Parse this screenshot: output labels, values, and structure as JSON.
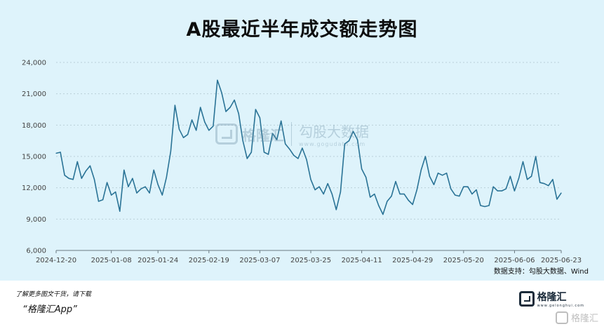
{
  "title": "A股最近半年成交额走势图",
  "source": "数据支持：勾股大数据、Wind",
  "watermark": {
    "brand": "格隆汇",
    "site": "勾股大数据",
    "url": "www.gogudata.com"
  },
  "footer": {
    "cta": "了解更多图文干货，请下载",
    "app": "“格隆汇App”",
    "brand": "格隆汇",
    "url": "www.gelonghui.com",
    "corner": "格隆汇"
  },
  "chart_data": {
    "type": "line",
    "title": "A股最近半年成交额走势图",
    "xlabel": "",
    "ylabel": "",
    "ylim": [
      6000,
      24000
    ],
    "yticks": [
      "6,000",
      "9,000",
      "12,000",
      "15,000",
      "18,000",
      "21,000",
      "24,000"
    ],
    "ytick_values": [
      6000,
      9000,
      12000,
      15000,
      18000,
      21000,
      24000
    ],
    "xtick_labels": [
      "2024-12-20",
      "2025-01-08",
      "2025-01-24",
      "2025-02-19",
      "2025-03-07",
      "2025-03-25",
      "2025-04-11",
      "2025-04-29",
      "2025-05-20",
      "2025-06-06",
      "2025-06-23"
    ],
    "xtick_index": [
      0,
      13,
      24,
      36,
      48,
      60,
      72,
      84,
      96,
      108,
      119
    ],
    "grid": "horizontal",
    "series": [
      {
        "color": "#2a7396",
        "values": [
          15300,
          15400,
          13200,
          12900,
          12800,
          14500,
          12900,
          13600,
          14100,
          12800,
          10700,
          10850,
          12500,
          11300,
          11600,
          9750,
          13700,
          12100,
          12900,
          11500,
          11900,
          12100,
          11500,
          13700,
          12300,
          11300,
          13000,
          15500,
          19900,
          17600,
          16800,
          17100,
          18500,
          17500,
          19700,
          18300,
          17500,
          17900,
          22300,
          21100,
          19300,
          19700,
          20400,
          19100,
          16500,
          14800,
          15400,
          19500,
          18700,
          15400,
          15200,
          17200,
          16600,
          18400,
          16200,
          15700,
          15100,
          14800,
          15800,
          14700,
          12800,
          11800,
          12100,
          11400,
          12400,
          11400,
          9900,
          11600,
          16200,
          16500,
          17400,
          16600,
          13800,
          13000,
          11100,
          11400,
          10300,
          9450,
          10700,
          11200,
          12600,
          11400,
          11400,
          10800,
          10400,
          11800,
          13700,
          15000,
          13100,
          12300,
          13400,
          13200,
          13400,
          11900,
          11300,
          11200,
          12100,
          12100,
          11400,
          11800,
          10300,
          10200,
          10300,
          12100,
          11700,
          11700,
          11900,
          13100,
          11700,
          12900,
          14500,
          12800,
          13100,
          15000,
          12500,
          12400,
          12200,
          12800,
          10900,
          11500
        ]
      }
    ]
  }
}
